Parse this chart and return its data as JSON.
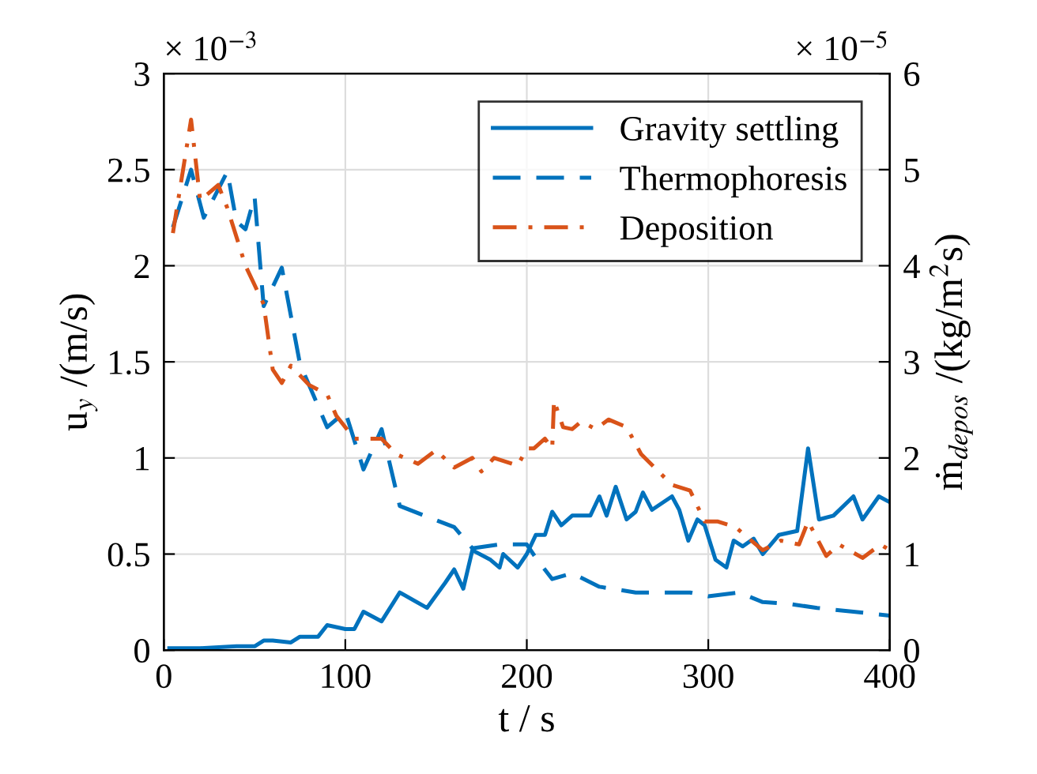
{
  "chart_data": {
    "type": "line",
    "xlabel": "t / s",
    "ylabel": "u$_{y}$ /(m/s)",
    "y2label": "ṁ$_{depos}$ /(kg/m$^{2}$s)",
    "annotations": [
      "× 10$^{−3}$",
      "× 10$^{−5}$"
    ],
    "xlim": [
      0,
      400
    ],
    "xticks": [
      0,
      100,
      200,
      300,
      400
    ],
    "ylim": [
      0,
      3
    ],
    "yticks": [
      0,
      0.5,
      1,
      1.5,
      2,
      2.5,
      3
    ],
    "y2lim": [
      0,
      6
    ],
    "y2ticks": [
      0,
      1,
      2,
      3,
      4,
      5,
      6
    ],
    "grid": true,
    "legend": "top right",
    "series": [
      {
        "name": "Gravity settling",
        "color": "#0072bd",
        "line_style": "solid",
        "x": [
          3,
          20,
          40,
          50,
          55,
          60,
          70,
          75,
          85,
          90,
          100,
          105,
          110,
          120,
          130,
          145,
          155,
          160,
          165,
          170,
          180,
          185,
          187,
          195,
          200,
          205,
          210,
          214,
          219,
          225,
          235,
          240,
          244,
          249,
          255,
          260,
          264,
          269,
          280,
          284,
          289,
          294,
          298,
          304,
          310,
          314,
          319,
          325,
          330,
          339,
          349,
          355,
          361,
          369,
          380,
          385,
          394,
          400
        ],
        "values": [
          0.01,
          0.01,
          0.02,
          0.02,
          0.05,
          0.05,
          0.04,
          0.07,
          0.07,
          0.13,
          0.11,
          0.11,
          0.2,
          0.15,
          0.3,
          0.22,
          0.35,
          0.42,
          0.32,
          0.52,
          0.47,
          0.43,
          0.5,
          0.43,
          0.5,
          0.6,
          0.6,
          0.72,
          0.65,
          0.7,
          0.7,
          0.8,
          0.7,
          0.85,
          0.68,
          0.72,
          0.82,
          0.73,
          0.8,
          0.73,
          0.57,
          0.68,
          0.65,
          0.47,
          0.43,
          0.57,
          0.54,
          0.58,
          0.5,
          0.6,
          0.62,
          1.05,
          0.68,
          0.7,
          0.8,
          0.68,
          0.8,
          0.77
        ]
      },
      {
        "name": "Thermophoresis",
        "color": "#0072bd",
        "line_style": "dashed",
        "x": [
          5,
          15,
          22,
          35,
          40,
          45,
          50,
          55,
          65,
          75,
          90,
          100,
          110,
          120,
          130,
          160,
          170,
          185,
          200,
          205,
          214,
          225,
          240,
          260,
          290,
          300,
          317,
          330,
          345,
          360,
          380,
          400
        ],
        "values": [
          2.2,
          2.5,
          2.25,
          2.49,
          2.23,
          2.19,
          2.36,
          1.79,
          1.99,
          1.49,
          1.16,
          1.24,
          0.94,
          1.15,
          0.75,
          0.64,
          0.53,
          0.55,
          0.55,
          0.48,
          0.37,
          0.4,
          0.33,
          0.3,
          0.3,
          0.28,
          0.3,
          0.25,
          0.24,
          0.22,
          0.2,
          0.18
        ]
      },
      {
        "name": "Deposition",
        "color": "#d95319",
        "line_style": "dashdot",
        "axis": "y2",
        "x": [
          5,
          15,
          20,
          30,
          35,
          45,
          50,
          55,
          60,
          65,
          70,
          80,
          90,
          95,
          105,
          120,
          128,
          140,
          150,
          160,
          170,
          175,
          182,
          195,
          200,
          204,
          210,
          214,
          215,
          220,
          225,
          230,
          238,
          245,
          255,
          263,
          280,
          290,
          298,
          305,
          315,
          330,
          340,
          350,
          355,
          365,
          372,
          385,
          395,
          400
        ],
        "values": [
          4.34,
          5.52,
          4.68,
          4.84,
          4.6,
          4.0,
          3.8,
          3.6,
          2.92,
          2.78,
          2.96,
          2.76,
          2.66,
          2.44,
          2.2,
          2.2,
          2.04,
          1.94,
          2.08,
          1.9,
          2.0,
          1.86,
          2.0,
          1.92,
          2.1,
          2.1,
          2.2,
          2.1,
          2.6,
          2.32,
          2.3,
          2.38,
          2.3,
          2.4,
          2.32,
          2.04,
          1.72,
          1.66,
          1.34,
          1.34,
          1.28,
          1.04,
          1.14,
          1.1,
          1.34,
          0.98,
          1.1,
          0.96,
          1.1,
          1.04
        ]
      }
    ]
  }
}
